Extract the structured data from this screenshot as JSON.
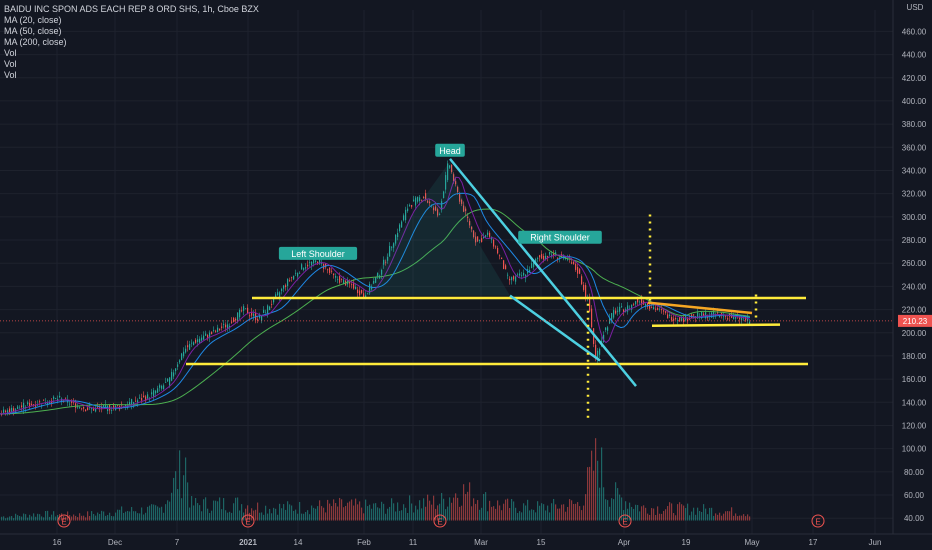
{
  "header": {
    "symbol_line": "BAIDU INC SPON ADS EACH REP 8 ORD SHS, 1h, Cboe BZX",
    "indicators": [
      "MA (20, close)",
      "MA (50, close)",
      "MA (200, close)",
      "Vol",
      "Vol",
      "Vol"
    ]
  },
  "colors": {
    "background": "#131722",
    "grid": "#1e222d",
    "axis_text": "#b2b5be",
    "candle_up": "#26a69a",
    "candle_down": "#ef5350",
    "ma20": "#7b1fa2",
    "ma50": "#1e88e5",
    "ma200": "#4caf50",
    "trendline": "#4dd0e1",
    "support": "#ffeb3b",
    "triangle": "#f5a623",
    "price_tag": "#ef5350",
    "label_bg": "#26a69a"
  },
  "chart_data": {
    "type": "candlestick",
    "title": "BAIDU INC SPON ADS EACH REP 8 ORD SHS, 1h, Cboe BZX",
    "y_unit": "USD",
    "y_ticks": [
      40,
      60,
      80,
      100,
      120,
      140,
      160,
      180,
      200,
      220,
      240,
      260,
      280,
      300,
      320,
      340,
      360,
      380,
      400,
      420,
      440,
      460
    ],
    "ylim": [
      35,
      475
    ],
    "x_ticks": [
      "16",
      "Dec",
      "7",
      "2021",
      "14",
      "Feb",
      "11",
      "Mar",
      "15",
      "Apr",
      "19",
      "May",
      "17",
      "Jun"
    ],
    "x_tick_x": [
      57,
      115,
      177,
      248,
      298,
      364,
      413,
      481,
      541,
      624,
      686,
      752,
      813,
      875
    ],
    "last_price": "210.23",
    "price_path": [
      [
        0,
        130
      ],
      [
        30,
        138
      ],
      [
        60,
        143
      ],
      [
        90,
        134
      ],
      [
        120,
        136
      ],
      [
        150,
        145
      ],
      [
        170,
        158
      ],
      [
        185,
        185
      ],
      [
        200,
        195
      ],
      [
        215,
        200
      ],
      [
        230,
        208
      ],
      [
        245,
        220
      ],
      [
        260,
        212
      ],
      [
        275,
        228
      ],
      [
        290,
        245
      ],
      [
        305,
        258
      ],
      [
        320,
        262
      ],
      [
        335,
        248
      ],
      [
        355,
        240
      ],
      [
        365,
        232
      ],
      [
        380,
        250
      ],
      [
        395,
        280
      ],
      [
        410,
        310
      ],
      [
        425,
        318
      ],
      [
        440,
        300
      ],
      [
        450,
        348
      ],
      [
        458,
        322
      ],
      [
        468,
        300
      ],
      [
        478,
        278
      ],
      [
        490,
        285
      ],
      [
        500,
        268
      ],
      [
        510,
        245
      ],
      [
        525,
        250
      ],
      [
        540,
        265
      ],
      [
        555,
        268
      ],
      [
        570,
        262
      ],
      [
        580,
        252
      ],
      [
        590,
        225
      ],
      [
        597,
        178
      ],
      [
        605,
        200
      ],
      [
        615,
        218
      ],
      [
        630,
        222
      ],
      [
        640,
        228
      ],
      [
        655,
        222
      ],
      [
        670,
        214
      ],
      [
        685,
        212
      ],
      [
        700,
        215
      ],
      [
        715,
        216
      ],
      [
        730,
        214
      ],
      [
        745,
        212
      ],
      [
        750,
        210
      ]
    ],
    "volume_path": [
      [
        0,
        42
      ],
      [
        40,
        45
      ],
      [
        80,
        44
      ],
      [
        120,
        48
      ],
      [
        160,
        50
      ],
      [
        185,
        100
      ],
      [
        190,
        55
      ],
      [
        240,
        56
      ],
      [
        260,
        52
      ],
      [
        300,
        52
      ],
      [
        340,
        54
      ],
      [
        380,
        52
      ],
      [
        410,
        56
      ],
      [
        440,
        58
      ],
      [
        460,
        70
      ],
      [
        500,
        54
      ],
      [
        540,
        52
      ],
      [
        580,
        56
      ],
      [
        598,
        110
      ],
      [
        605,
        70
      ],
      [
        640,
        52
      ],
      [
        700,
        50
      ],
      [
        750,
        46
      ]
    ],
    "annotations": [
      {
        "text": "Head",
        "x": 450,
        "y": 357
      },
      {
        "text": "Left Shoulder",
        "x": 318,
        "y": 268
      },
      {
        "text": "Right Shoulder",
        "x": 560,
        "y": 282
      }
    ],
    "drawings": {
      "neckline_upper": {
        "x1": 252,
        "x2": 806,
        "y": 230
      },
      "neckline_lower": {
        "x1": 186,
        "x2": 808,
        "y": 173
      },
      "trendline_down": {
        "x1": 450,
        "y1": 350,
        "x2": 636,
        "y2": 154
      },
      "trendline_left": {
        "x1": 510,
        "y1": 232,
        "x2": 600,
        "y2": 176
      },
      "triangle_upper": {
        "x1": 648,
        "y1": 226,
        "x2": 752,
        "y2": 217
      },
      "triangle_lower": {
        "x1": 652,
        "y1": 206,
        "x2": 780,
        "y2": 207
      },
      "vertical_dotted": [
        {
          "x": 588,
          "y1": 225,
          "y2": 125
        },
        {
          "x": 650,
          "y1": 302,
          "y2": 226
        },
        {
          "x": 756,
          "y1": 233,
          "y2": 211
        }
      ]
    },
    "earnings_marks_x": [
      64,
      248,
      440,
      625,
      818
    ],
    "legend": "top-left",
    "grid": true
  }
}
